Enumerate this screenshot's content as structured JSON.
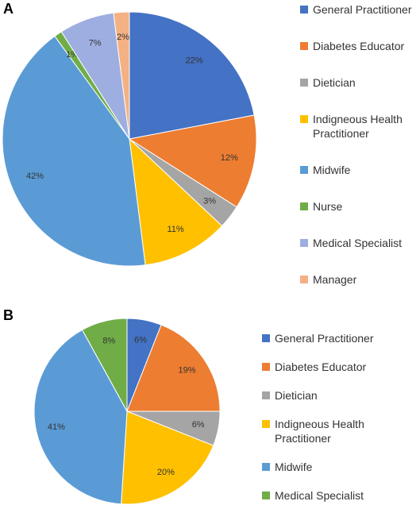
{
  "chart_data": [
    {
      "type": "pie",
      "panel": "A",
      "categories": [
        "General Practitioner",
        "Diabetes Educator",
        "Dietician",
        "Indigneous Health Practitioner",
        "Midwife",
        "Nurse",
        "Medical Specialist",
        "Manager"
      ],
      "values": [
        22,
        12,
        3,
        11,
        42,
        1,
        7,
        2
      ],
      "value_labels": [
        "22%",
        "12%",
        "3%",
        "11%",
        "42%",
        "1%",
        "7%",
        "2%"
      ],
      "colors": [
        "#4472c4",
        "#ed7d31",
        "#a5a5a5",
        "#ffc000",
        "#5b9bd5",
        "#70ad47",
        "#9eaee0",
        "#f4b183"
      ]
    },
    {
      "type": "pie",
      "panel": "B",
      "categories": [
        "General Practitioner",
        "Diabetes Educator",
        "Dietician",
        "Indigneous Health Practitioner",
        "Midwife",
        "Medical Specialist"
      ],
      "values": [
        6,
        19,
        6,
        20,
        41,
        8
      ],
      "value_labels": [
        "6%",
        "19%",
        "6%",
        "20%",
        "41%",
        "8%"
      ],
      "colors": [
        "#4472c4",
        "#ed7d31",
        "#a5a5a5",
        "#ffc000",
        "#5b9bd5",
        "#70ad47"
      ]
    }
  ]
}
